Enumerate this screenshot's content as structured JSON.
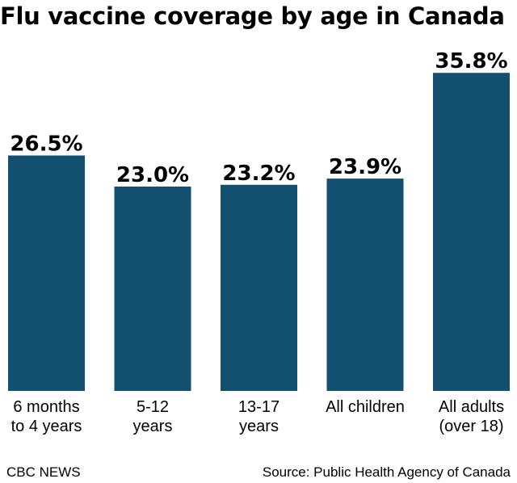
{
  "chart_data": {
    "type": "bar",
    "title": "Flu vaccine coverage by age in Canada",
    "categories": [
      "6 months\nto 4 years",
      "5-12\nyears",
      "13-17\nyears",
      "All children",
      "All adults\n(over 18)"
    ],
    "values": [
      26.5,
      23.0,
      23.2,
      23.9,
      35.8
    ],
    "value_labels": [
      "26.5%",
      "23.0%",
      "23.2%",
      "23.9%",
      "35.8%"
    ],
    "xlabel": "",
    "ylabel": "",
    "ylim": [
      0,
      40
    ],
    "grid": false,
    "bar_color": "#13506f"
  },
  "footer": {
    "brand": "CBC NEWS",
    "source": "Source: Public Health Agency of Canada"
  }
}
